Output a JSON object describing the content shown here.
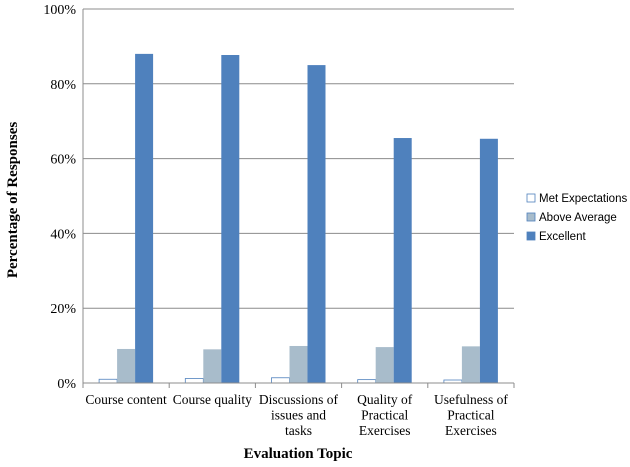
{
  "chart_data": {
    "type": "bar",
    "xlabel": "Evaluation Topic",
    "ylabel": "Percentage of Responses",
    "ylim": [
      0,
      100
    ],
    "yticks": [
      0,
      20,
      40,
      60,
      80,
      100
    ],
    "ytick_suffix": "%",
    "grid": true,
    "legend_position": "right",
    "categories": [
      [
        "Course content"
      ],
      [
        "Course quality"
      ],
      [
        "Discussions of",
        "issues and",
        "tasks"
      ],
      [
        "Quality of",
        "Practical",
        "Exercises"
      ],
      [
        "Usefulness of",
        "Practical",
        "Exercises"
      ]
    ],
    "series": [
      {
        "name": "Met Expectations",
        "color": "#ffffff",
        "values": [
          1.0,
          1.2,
          1.4,
          0.9,
          0.8
        ]
      },
      {
        "name": "Above Average",
        "color": "#a8bccb",
        "values": [
          9.1,
          9.0,
          9.9,
          9.6,
          9.8
        ]
      },
      {
        "name": "Excellent",
        "color": "#4f81bd",
        "values": [
          88.0,
          87.7,
          85.0,
          65.5,
          65.3
        ]
      }
    ]
  }
}
